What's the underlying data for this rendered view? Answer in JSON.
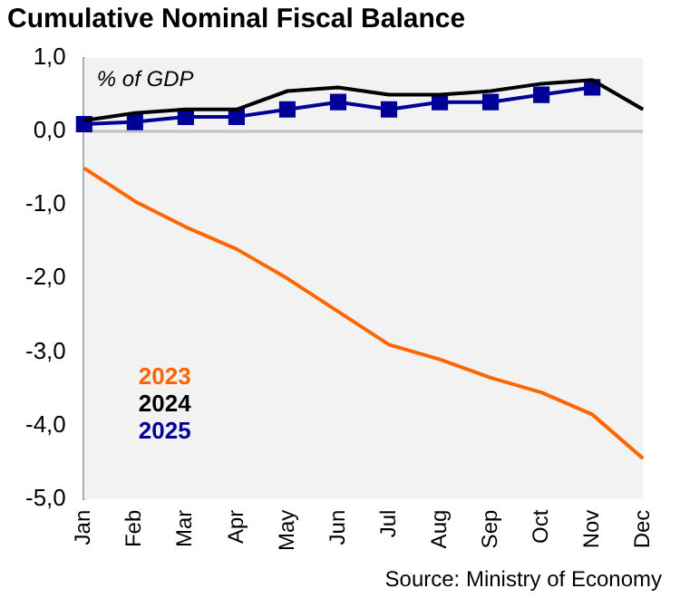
{
  "chart_data": {
    "type": "line",
    "title": "Cumulative Nominal Fiscal Balance",
    "categories": [
      "Jan",
      "Feb",
      "Mar",
      "Apr",
      "May",
      "Jun",
      "Jul",
      "Aug",
      "Sep",
      "Oct",
      "Nov",
      "Dec"
    ],
    "series": [
      {
        "name": "2023",
        "color": "#ff6600",
        "marker": "none",
        "values": [
          -0.5,
          -0.95,
          -1.3,
          -1.6,
          -2.0,
          -2.45,
          -2.9,
          -3.1,
          -3.35,
          -3.55,
          -3.85,
          -4.45
        ]
      },
      {
        "name": "2024",
        "color": "#000000",
        "marker": "none",
        "values": [
          0.15,
          0.25,
          0.3,
          0.3,
          0.55,
          0.6,
          0.5,
          0.5,
          0.55,
          0.65,
          0.7,
          0.3
        ]
      },
      {
        "name": "2025",
        "color": "#000099",
        "marker": "square",
        "values": [
          0.1,
          0.13,
          0.2,
          0.2,
          0.3,
          0.4,
          0.3,
          0.4,
          0.4,
          0.5,
          0.6,
          null
        ]
      }
    ],
    "ylim": [
      -5,
      1
    ],
    "yticks": [
      {
        "value": -5,
        "label": "-5,0"
      },
      {
        "value": -4,
        "label": "-4,0"
      },
      {
        "value": -3,
        "label": "-3,0"
      },
      {
        "value": -2,
        "label": "-2,0"
      },
      {
        "value": -1,
        "label": "-1,0"
      },
      {
        "value": 0,
        "label": "0,0"
      },
      {
        "value": 1,
        "label": "1,0"
      }
    ],
    "ref_lines": [
      {
        "axis": "y",
        "value": 0,
        "color": "#bfbfbf"
      }
    ],
    "grid": false,
    "legend": "bottom left",
    "annotations": [
      "% of GDP",
      "Source: Ministry of Economy"
    ]
  }
}
